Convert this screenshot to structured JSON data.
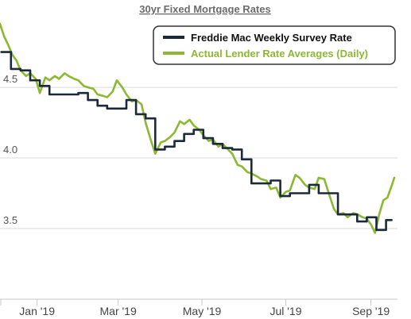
{
  "chart_data": {
    "type": "line",
    "title": "30yr Fixed Mortgage Rates",
    "xlabel": "",
    "ylabel": "",
    "ylim": [
      3.0,
      4.95
    ],
    "x_range": [
      "2018-12-05",
      "2019-09-18"
    ],
    "grid": "horizontal",
    "legend_position": "top-right",
    "y_ticks": [
      {
        "label": "4.5",
        "value": 4.5
      },
      {
        "label": "4.0",
        "value": 4.0
      },
      {
        "label": "3.5",
        "value": 3.5
      }
    ],
    "x_ticks": [
      {
        "label": "Jan '19",
        "value": "2019-01-01"
      },
      {
        "label": "Mar '19",
        "value": "2019-03-01"
      },
      {
        "label": "May '19",
        "value": "2019-05-01"
      },
      {
        "label": "Jul '19",
        "value": "2019-07-01"
      },
      {
        "label": "Sep '19",
        "value": "2019-09-01"
      }
    ],
    "series": [
      {
        "name": "Freddie Mac Weekly Survey Rate",
        "color": "#1b2a3a",
        "style": "step",
        "points": [
          [
            "2018-12-06",
            4.75
          ],
          [
            "2018-12-13",
            4.63
          ],
          [
            "2018-12-20",
            4.62
          ],
          [
            "2018-12-27",
            4.55
          ],
          [
            "2019-01-03",
            4.51
          ],
          [
            "2019-01-10",
            4.45
          ],
          [
            "2019-01-17",
            4.45
          ],
          [
            "2019-01-24",
            4.45
          ],
          [
            "2019-01-31",
            4.46
          ],
          [
            "2019-02-07",
            4.41
          ],
          [
            "2019-02-14",
            4.37
          ],
          [
            "2019-02-21",
            4.35
          ],
          [
            "2019-02-28",
            4.35
          ],
          [
            "2019-03-07",
            4.41
          ],
          [
            "2019-03-14",
            4.31
          ],
          [
            "2019-03-21",
            4.28
          ],
          [
            "2019-03-28",
            4.06
          ],
          [
            "2019-04-04",
            4.08
          ],
          [
            "2019-04-11",
            4.12
          ],
          [
            "2019-04-18",
            4.17
          ],
          [
            "2019-04-25",
            4.2
          ],
          [
            "2019-05-02",
            4.14
          ],
          [
            "2019-05-09",
            4.1
          ],
          [
            "2019-05-16",
            4.07
          ],
          [
            "2019-05-23",
            4.06
          ],
          [
            "2019-05-30",
            3.99
          ],
          [
            "2019-06-06",
            3.82
          ],
          [
            "2019-06-13",
            3.82
          ],
          [
            "2019-06-20",
            3.84
          ],
          [
            "2019-06-27",
            3.73
          ],
          [
            "2019-07-04",
            3.75
          ],
          [
            "2019-07-11",
            3.75
          ],
          [
            "2019-07-18",
            3.81
          ],
          [
            "2019-07-25",
            3.75
          ],
          [
            "2019-08-01",
            3.75
          ],
          [
            "2019-08-08",
            3.6
          ],
          [
            "2019-08-15",
            3.6
          ],
          [
            "2019-08-22",
            3.55
          ],
          [
            "2019-08-29",
            3.58
          ],
          [
            "2019-09-05",
            3.49
          ],
          [
            "2019-09-12",
            3.56
          ]
        ]
      },
      {
        "name": "Actual Lender Rate Averages (Daily)",
        "color": "#8cb832",
        "style": "line",
        "points": [
          [
            "2018-12-05",
            4.95
          ],
          [
            "2018-12-08",
            4.86
          ],
          [
            "2018-12-11",
            4.8
          ],
          [
            "2018-12-14",
            4.73
          ],
          [
            "2018-12-17",
            4.69
          ],
          [
            "2018-12-20",
            4.62
          ],
          [
            "2018-12-24",
            4.58
          ],
          [
            "2018-12-27",
            4.6
          ],
          [
            "2018-12-31",
            4.56
          ],
          [
            "2019-01-03",
            4.46
          ],
          [
            "2019-01-07",
            4.57
          ],
          [
            "2019-01-10",
            4.55
          ],
          [
            "2019-01-14",
            4.58
          ],
          [
            "2019-01-17",
            4.56
          ],
          [
            "2019-01-21",
            4.6
          ],
          [
            "2019-01-24",
            4.58
          ],
          [
            "2019-01-28",
            4.56
          ],
          [
            "2019-01-31",
            4.55
          ],
          [
            "2019-02-04",
            4.51
          ],
          [
            "2019-02-07",
            4.5
          ],
          [
            "2019-02-11",
            4.49
          ],
          [
            "2019-02-14",
            4.45
          ],
          [
            "2019-02-18",
            4.44
          ],
          [
            "2019-02-21",
            4.43
          ],
          [
            "2019-02-25",
            4.47
          ],
          [
            "2019-02-28",
            4.55
          ],
          [
            "2019-03-04",
            4.5
          ],
          [
            "2019-03-07",
            4.45
          ],
          [
            "2019-03-11",
            4.4
          ],
          [
            "2019-03-14",
            4.41
          ],
          [
            "2019-03-18",
            4.38
          ],
          [
            "2019-03-21",
            4.25
          ],
          [
            "2019-03-25",
            4.12
          ],
          [
            "2019-03-28",
            4.03
          ],
          [
            "2019-04-01",
            4.11
          ],
          [
            "2019-04-04",
            4.12
          ],
          [
            "2019-04-08",
            4.15
          ],
          [
            "2019-04-11",
            4.18
          ],
          [
            "2019-04-15",
            4.26
          ],
          [
            "2019-04-18",
            4.24
          ],
          [
            "2019-04-22",
            4.27
          ],
          [
            "2019-04-25",
            4.23
          ],
          [
            "2019-04-29",
            4.2
          ],
          [
            "2019-05-02",
            4.16
          ],
          [
            "2019-05-06",
            4.12
          ],
          [
            "2019-05-09",
            4.13
          ],
          [
            "2019-05-13",
            4.08
          ],
          [
            "2019-05-16",
            4.1
          ],
          [
            "2019-05-20",
            4.06
          ],
          [
            "2019-05-23",
            4.03
          ],
          [
            "2019-05-27",
            3.95
          ],
          [
            "2019-05-30",
            3.94
          ],
          [
            "2019-06-03",
            3.9
          ],
          [
            "2019-06-06",
            3.89
          ],
          [
            "2019-06-10",
            3.87
          ],
          [
            "2019-06-13",
            3.85
          ],
          [
            "2019-06-17",
            3.84
          ],
          [
            "2019-06-20",
            3.78
          ],
          [
            "2019-06-24",
            3.79
          ],
          [
            "2019-06-27",
            3.72
          ],
          [
            "2019-07-01",
            3.76
          ],
          [
            "2019-07-04",
            3.77
          ],
          [
            "2019-07-08",
            3.88
          ],
          [
            "2019-07-11",
            3.86
          ],
          [
            "2019-07-15",
            3.81
          ],
          [
            "2019-07-18",
            3.79
          ],
          [
            "2019-07-22",
            3.78
          ],
          [
            "2019-07-25",
            3.86
          ],
          [
            "2019-07-29",
            3.85
          ],
          [
            "2019-08-01",
            3.76
          ],
          [
            "2019-08-05",
            3.64
          ],
          [
            "2019-08-08",
            3.6
          ],
          [
            "2019-08-12",
            3.61
          ],
          [
            "2019-08-15",
            3.58
          ],
          [
            "2019-08-19",
            3.61
          ],
          [
            "2019-08-22",
            3.6
          ],
          [
            "2019-08-26",
            3.58
          ],
          [
            "2019-08-29",
            3.57
          ],
          [
            "2019-09-01",
            3.53
          ],
          [
            "2019-09-04",
            3.47
          ],
          [
            "2019-09-07",
            3.6
          ],
          [
            "2019-09-10",
            3.7
          ],
          [
            "2019-09-13",
            3.72
          ],
          [
            "2019-09-16",
            3.8
          ],
          [
            "2019-09-18",
            3.86
          ]
        ]
      }
    ]
  }
}
